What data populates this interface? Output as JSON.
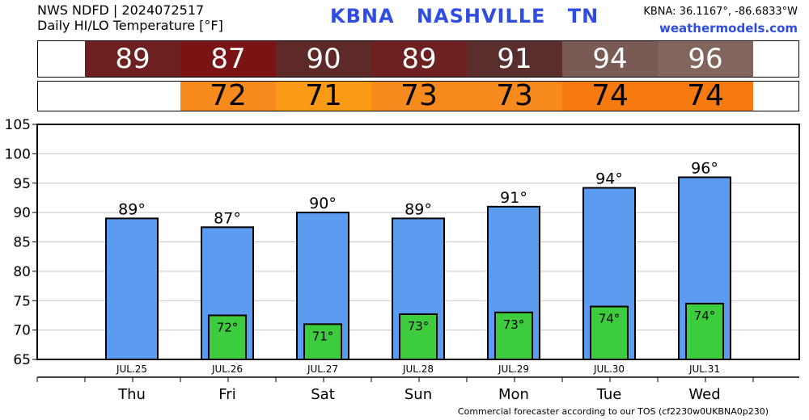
{
  "header": {
    "line1": "NWS NDFD | 2024072517",
    "line2": "Daily HI/LO Temperature [°F]",
    "station_id": "KBNA",
    "city": "NASHVILLE",
    "state": "TN",
    "coords": "KBNA: 36.1167°, -86.6833°W",
    "site": "weathermodels.com"
  },
  "colors": {
    "hi_bar": "#5b9cf0",
    "lo_bar": "#3dcc3d",
    "hi_cells": [
      "#6e1f1f",
      "#7a1414",
      "#5e2a28",
      "#6e1f1f",
      "#5a2e2c",
      "#7a5a54",
      "#82665e"
    ],
    "lo_cells": [
      null,
      "#f78a1c",
      "#fb9a14",
      "#f78a1c",
      "#f78a1c",
      "#f77a10",
      "#f77a10"
    ]
  },
  "chart_data": {
    "type": "bar",
    "categories": [
      "Thu",
      "Fri",
      "Sat",
      "Sun",
      "Mon",
      "Tue",
      "Wed"
    ],
    "dates": [
      "JUL.25",
      "JUL.26",
      "JUL.27",
      "JUL.28",
      "JUL.29",
      "JUL.30",
      "JUL.31"
    ],
    "series": [
      {
        "values": [
          89,
          87.5,
          90,
          89,
          91,
          94.2,
          96
        ]
      },
      {
        "values": [
          null,
          72.5,
          71,
          72.7,
          73,
          74,
          74.5
        ]
      }
    ],
    "hi_labels": [
      "89°",
      "87°",
      "90°",
      "89°",
      "91°",
      "94°",
      "96°"
    ],
    "lo_labels": [
      "",
      "72°",
      "71°",
      "73°",
      "73°",
      "74°",
      "74°"
    ],
    "hi_strip": [
      "89",
      "87",
      "90",
      "89",
      "91",
      "94",
      "96"
    ],
    "lo_strip": [
      "",
      "72",
      "71",
      "73",
      "73",
      "74",
      "74"
    ],
    "ylim": [
      65,
      105
    ],
    "yticks": [
      65,
      70,
      75,
      80,
      85,
      90,
      95,
      100,
      105
    ],
    "grid": true
  },
  "footer": "Commercial forecaster according to our TOS (cf2230w0UKBNA0p230)"
}
